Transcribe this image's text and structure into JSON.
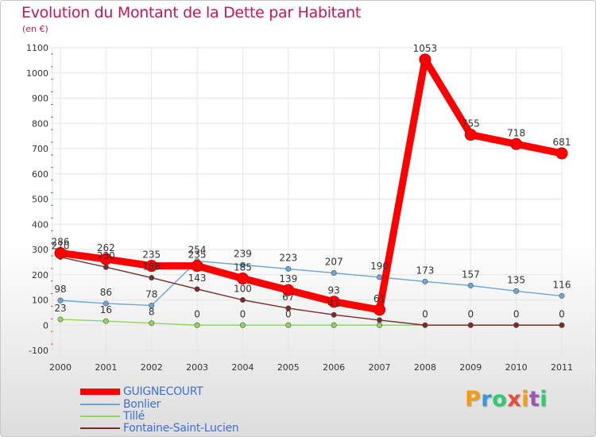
{
  "header": {
    "title": "Evolution du Montant de la Dette par Habitant",
    "subtitle": "(en €)"
  },
  "logo": {
    "text": "Proxiti",
    "colors": [
      "#f39c12",
      "#3498db",
      "#2ecc71",
      "#e74c3c",
      "#f39c12",
      "#9b59b6",
      "#2ecc71"
    ]
  },
  "chart_data": {
    "type": "line",
    "title": "Evolution du Montant de la Dette par Habitant",
    "subtitle": "(en €)",
    "xlabel": "",
    "ylabel": "",
    "x": [
      "2000",
      "2001",
      "2002",
      "2003",
      "2004",
      "2005",
      "2006",
      "2007",
      "2008",
      "2009",
      "2010",
      "2011"
    ],
    "ylim": [
      -100,
      1100
    ],
    "yticks": [
      "-100",
      "0",
      "100",
      "200",
      "300",
      "400",
      "500",
      "600",
      "700",
      "800",
      "900",
      "1000",
      "1100"
    ],
    "grid": true,
    "legend_position": "bottom-left",
    "series": [
      {
        "name": "GUIGNECOURT",
        "color": "#ff0000",
        "values": [
          286,
          262,
          235,
          235,
          185,
          139,
          93,
          61,
          1053,
          755,
          718,
          681
        ],
        "labels": [
          "286",
          "262",
          "235",
          "235",
          "185",
          "139",
          "93",
          "61",
          "1053",
          "755",
          "718",
          "681"
        ]
      },
      {
        "name": "Bonlier",
        "color": "#6aa6d8",
        "values": [
          98,
          86,
          78,
          254,
          239,
          223,
          207,
          190,
          173,
          157,
          135,
          116
        ],
        "labels": [
          "98",
          "86",
          "78",
          "254",
          "239",
          "223",
          "207",
          "190",
          "173",
          "157",
          "135",
          "116"
        ]
      },
      {
        "name": "Tillé",
        "color": "#8fd65c",
        "values": [
          23,
          16,
          8,
          0,
          0,
          0,
          0,
          0,
          0,
          0,
          0,
          0
        ],
        "labels": [
          "23",
          "16",
          "8",
          "0",
          "0",
          "0",
          "",
          "",
          "0",
          "0",
          "0",
          "0"
        ]
      },
      {
        "name": "Fontaine-Saint-Lucien",
        "color": "#7a2a2a",
        "values": [
          270,
          230,
          188,
          143,
          100,
          67,
          41,
          20,
          0,
          0,
          0,
          0
        ],
        "labels": [
          "270",
          "230",
          "188",
          "143",
          "100",
          "67",
          "41",
          "",
          "",
          "",
          "",
          ""
        ]
      }
    ]
  }
}
